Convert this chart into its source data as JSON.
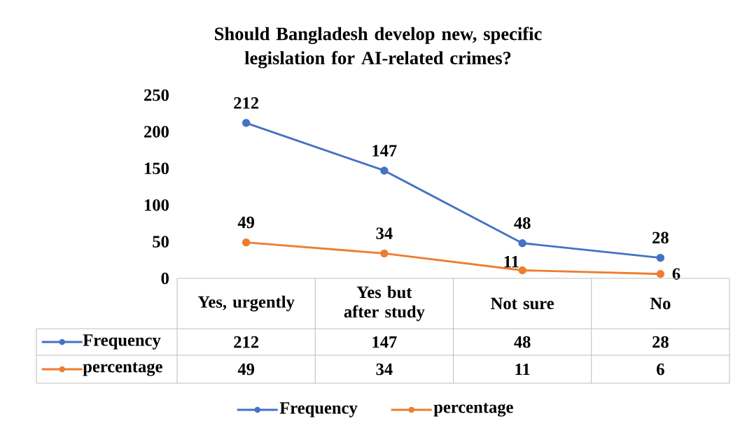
{
  "chart_data": {
    "type": "line",
    "title": "Should Bangladesh develop new, specific legislation for AI-related crimes?",
    "categories": [
      "Yes, urgently",
      "Yes but after study",
      "Not sure",
      "No"
    ],
    "series": [
      {
        "name": "Frequency",
        "color": "#4472c4",
        "values": [
          212,
          147,
          48,
          28
        ],
        "value_labels": [
          "212",
          "147",
          "48",
          "28"
        ]
      },
      {
        "name": "percentage",
        "color": "#ed7d31",
        "values": [
          49,
          34,
          11,
          6
        ],
        "value_labels": [
          "49",
          "34",
          "11",
          "6"
        ]
      }
    ],
    "ylim": [
      0,
      250
    ],
    "yticks": [
      0,
      50,
      100,
      150,
      200,
      250
    ],
    "legend": "bottom",
    "marker": "circle"
  }
}
